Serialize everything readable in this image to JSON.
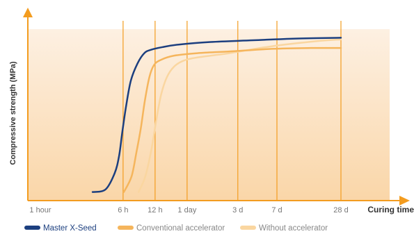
{
  "chart_data": {
    "type": "line",
    "xlabel": "Curing time",
    "ylabel": "Compressive strength (MPa)",
    "x_scale": "log",
    "x_unit": "hours",
    "x_range": [
      1,
      840
    ],
    "y_range": [
      0,
      100
    ],
    "grid": "vertical lines at x ticks",
    "legend_position": "bottom",
    "ticks": [
      {
        "label": "1 hour",
        "x": 1
      },
      {
        "label": "6 h",
        "x": 6
      },
      {
        "label": "12 h",
        "x": 12
      },
      {
        "label": "1 day",
        "x": 24
      },
      {
        "label": "3 d",
        "x": 72
      },
      {
        "label": "7 d",
        "x": 168
      },
      {
        "label": "28 d",
        "x": 672
      }
    ],
    "series": [
      {
        "name": "Master X-Seed",
        "color": "#1c3f7f",
        "points": [
          [
            3.1,
            5
          ],
          [
            4.1,
            6.5
          ],
          [
            5.0,
            16
          ],
          [
            5.5,
            26
          ],
          [
            5.9,
            40
          ],
          [
            6.4,
            55
          ],
          [
            7.1,
            70
          ],
          [
            8.2,
            80
          ],
          [
            9.5,
            86
          ],
          [
            11,
            88
          ],
          [
            14,
            89.5
          ],
          [
            20,
            91
          ],
          [
            40,
            92.5
          ],
          [
            100,
            93.5
          ],
          [
            250,
            94.5
          ],
          [
            672,
            95
          ]
        ]
      },
      {
        "name": "Conventional accelerator",
        "color": "#f5b55c",
        "points": [
          [
            6.1,
            5
          ],
          [
            7.2,
            14
          ],
          [
            8.0,
            28
          ],
          [
            8.8,
            42
          ],
          [
            9.6,
            58
          ],
          [
            10.6,
            72
          ],
          [
            11.7,
            79
          ],
          [
            13.5,
            82
          ],
          [
            18,
            84.5
          ],
          [
            30,
            86
          ],
          [
            60,
            87
          ],
          [
            150,
            88.5
          ],
          [
            350,
            89
          ],
          [
            672,
            89
          ]
        ]
      },
      {
        "name": "Without accelerator",
        "color": "#fad6a0",
        "points": [
          [
            8.4,
            5
          ],
          [
            9.7,
            14
          ],
          [
            11.1,
            30
          ],
          [
            12.4,
            48
          ],
          [
            13.7,
            62
          ],
          [
            15.5,
            72
          ],
          [
            18,
            78
          ],
          [
            22,
            81.5
          ],
          [
            30,
            83.5
          ],
          [
            60,
            86
          ],
          [
            150,
            90
          ],
          [
            400,
            93
          ],
          [
            672,
            94
          ]
        ]
      }
    ]
  }
}
